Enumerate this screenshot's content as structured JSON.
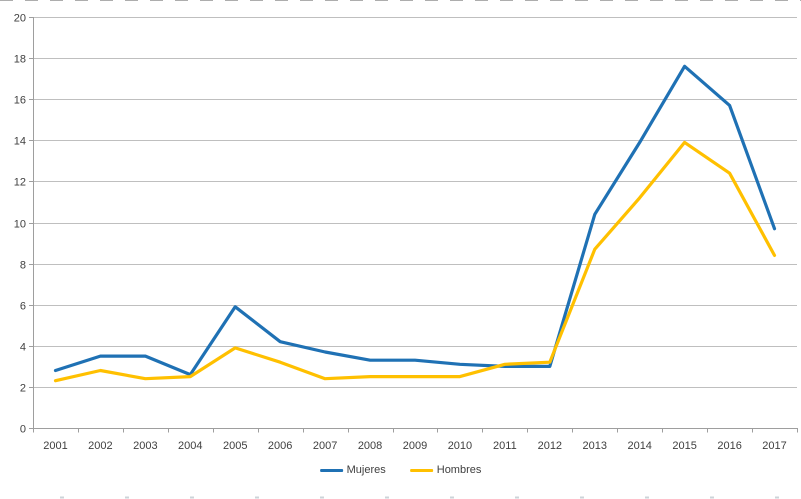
{
  "chart_data": {
    "type": "line",
    "x": [
      "2001",
      "2002",
      "2003",
      "2004",
      "2005",
      "2006",
      "2007",
      "2008",
      "2009",
      "2010",
      "2011",
      "2012",
      "2013",
      "2014",
      "2015",
      "2016",
      "2017"
    ],
    "series": [
      {
        "name": "Mujeres",
        "color": "#1F71B4",
        "values": [
          2.8,
          3.5,
          3.5,
          2.6,
          5.9,
          4.2,
          3.7,
          3.3,
          3.3,
          3.1,
          3.0,
          3.0,
          10.4,
          13.9,
          17.6,
          15.7,
          9.7
        ]
      },
      {
        "name": "Hombres",
        "color": "#FFC000",
        "values": [
          2.3,
          2.8,
          2.4,
          2.5,
          3.9,
          3.2,
          2.4,
          2.5,
          2.5,
          2.5,
          3.1,
          3.2,
          8.7,
          11.2,
          13.9,
          12.4,
          8.4
        ]
      }
    ],
    "title": "",
    "xlabel": "",
    "ylabel": "",
    "ylim": [
      0,
      20
    ],
    "ytick_step": 2,
    "grid": true,
    "legend_position": "bottom-center"
  },
  "colors": {
    "background": "#FFFFFF",
    "grid": "#BFBFBF",
    "axis": "#9E9E9E",
    "tick": "#9E9E9E",
    "tick_label": "#3F3F3F",
    "edge_dash_top": "#ADADAD",
    "edge_dash_bottom": "#CDD4DA"
  }
}
